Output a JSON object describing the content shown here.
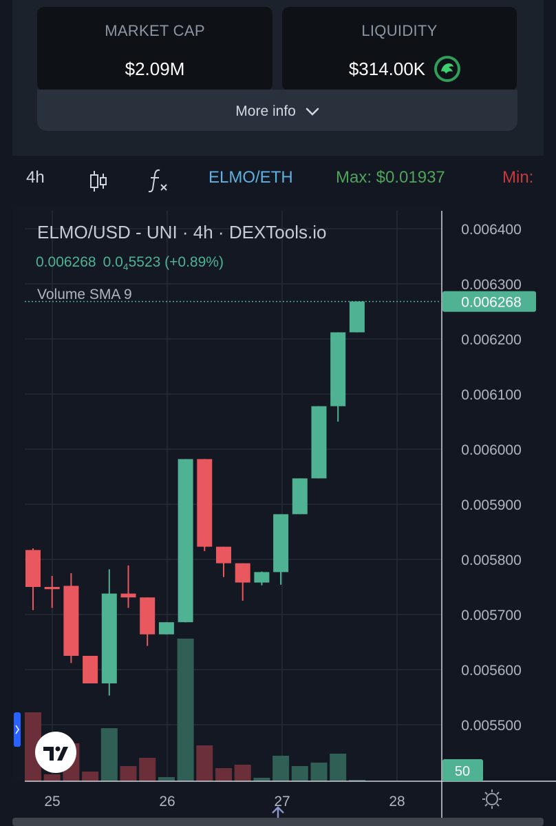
{
  "stats": {
    "market_cap_label": "MARKET CAP",
    "market_cap_value": "$2.09M",
    "liquidity_label": "LIQUIDITY",
    "liquidity_value": "$314.00K",
    "more_info": "More info"
  },
  "toolbar": {
    "interval": "4h",
    "pair": "ELMO/ETH",
    "max": "Max: $0.01937",
    "min": "Min:"
  },
  "chart_header": {
    "title": "ELMO/USD - UNI · 4h · DEXTools.io",
    "price": "0.006268",
    "change_prefix": "0.0",
    "change_sub": "4",
    "change_rest": "5523 (+0.89%)",
    "volume_label": "Volume SMA 9"
  },
  "colors": {
    "up": "#4fb393",
    "down": "#e8585e",
    "up_vol": "#2f5f55",
    "down_vol": "#6a2f38"
  },
  "chart_data": {
    "type": "candlestick",
    "title": "ELMO/USD - UNI · 4h · DEXTools.io",
    "y_ticks": [
      "0.006400",
      "0.006300",
      "0.006200",
      "0.006100",
      "0.006000",
      "0.005900",
      "0.005800",
      "0.005700",
      "0.005600",
      "0.005500"
    ],
    "ylim": [
      0.00548,
      0.00643
    ],
    "x_ticks": [
      "25",
      "26",
      "27",
      "28"
    ],
    "last_price_label": "0.006268",
    "volume_badge": "50",
    "candles": [
      {
        "o": 0.005817,
        "h": 0.00582,
        "l": 0.005708,
        "c": 0.00575
      },
      {
        "o": 0.00575,
        "h": 0.00577,
        "l": 0.005712,
        "c": 0.005746
      },
      {
        "o": 0.005752,
        "h": 0.005775,
        "l": 0.005612,
        "c": 0.005625
      },
      {
        "o": 0.005625,
        "h": 0.005625,
        "l": 0.005575,
        "c": 0.005575
      },
      {
        "o": 0.005575,
        "h": 0.005782,
        "l": 0.005553,
        "c": 0.005738
      },
      {
        "o": 0.005738,
        "h": 0.005789,
        "l": 0.005712,
        "c": 0.005731
      },
      {
        "o": 0.005731,
        "h": 0.005731,
        "l": 0.005643,
        "c": 0.005664
      },
      {
        "o": 0.005664,
        "h": 0.005686,
        "l": 0.005664,
        "c": 0.005686
      },
      {
        "o": 0.005686,
        "h": 0.005982,
        "l": 0.005686,
        "c": 0.005982
      },
      {
        "o": 0.005982,
        "h": 0.005982,
        "l": 0.005815,
        "c": 0.005823
      },
      {
        "o": 0.005823,
        "h": 0.005823,
        "l": 0.005768,
        "c": 0.005793
      },
      {
        "o": 0.005793,
        "h": 0.005793,
        "l": 0.005725,
        "c": 0.005758
      },
      {
        "o": 0.005758,
        "h": 0.005778,
        "l": 0.005753,
        "c": 0.005777
      },
      {
        "o": 0.005777,
        "h": 0.005882,
        "l": 0.005754,
        "c": 0.005882
      },
      {
        "o": 0.005882,
        "h": 0.005947,
        "l": 0.005882,
        "c": 0.005947
      },
      {
        "o": 0.005947,
        "h": 0.006078,
        "l": 0.005947,
        "c": 0.006078
      },
      {
        "o": 0.006078,
        "h": 0.006212,
        "l": 0.00605,
        "c": 0.006212
      },
      {
        "o": 0.006212,
        "h": 0.006268,
        "l": 0.006212,
        "c": 0.006268
      }
    ],
    "volumes": [
      100,
      10,
      55,
      14,
      77,
      22,
      34,
      6,
      207,
      52,
      19,
      24,
      5,
      37,
      22,
      27,
      40,
      2
    ]
  }
}
